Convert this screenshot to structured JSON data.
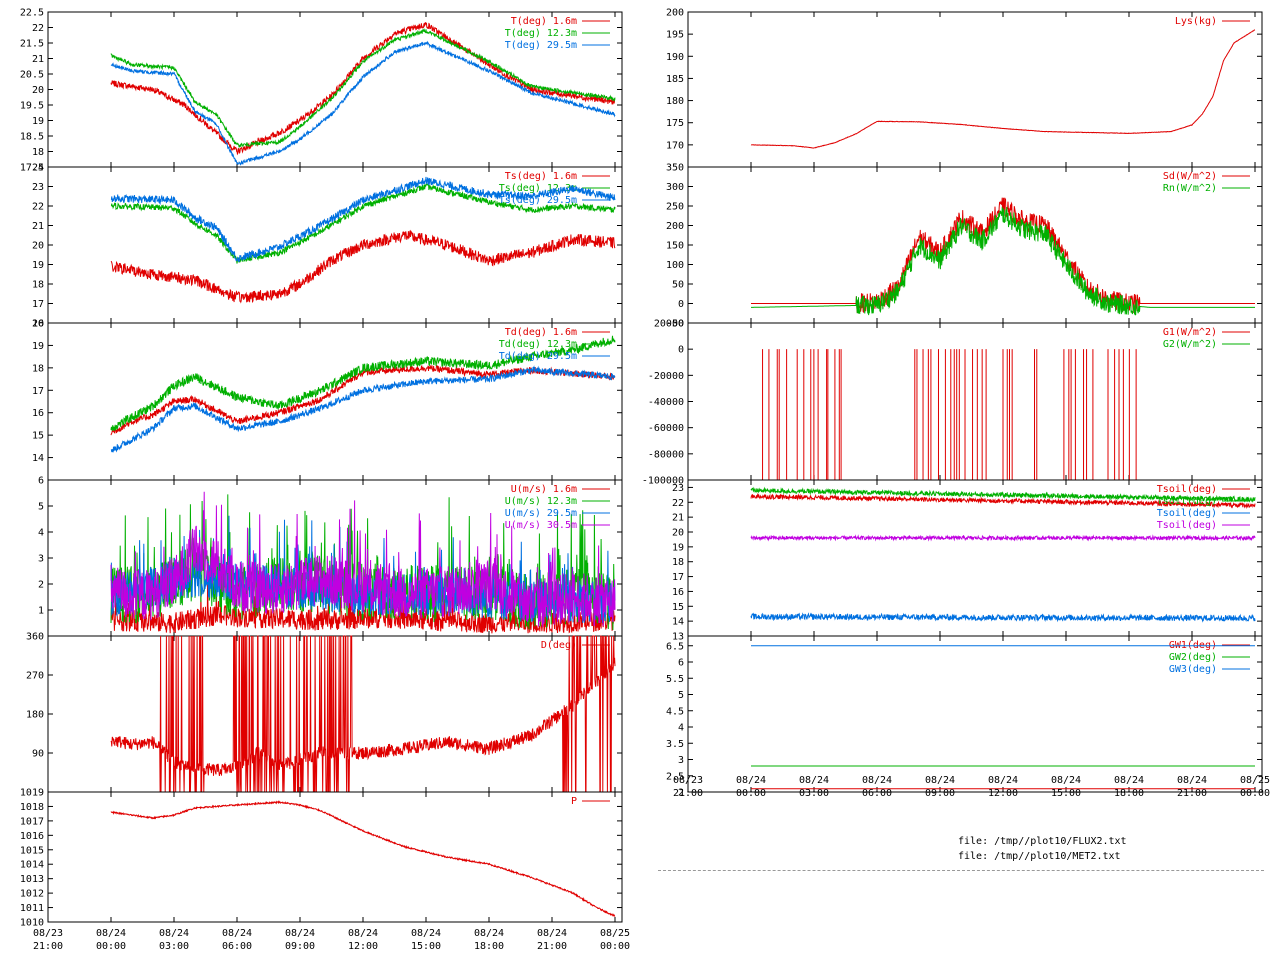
{
  "colors": {
    "red": "#e00000",
    "green": "#00b000",
    "blue": "#0070e0",
    "purple": "#c000e0",
    "axis": "#000000"
  },
  "left_time_ticks": [
    {
      "date": "08/23",
      "time": "21:00"
    },
    {
      "date": "08/24",
      "time": "00:00"
    },
    {
      "date": "08/24",
      "time": "03:00"
    },
    {
      "date": "08/24",
      "time": "06:00"
    },
    {
      "date": "08/24",
      "time": "09:00"
    },
    {
      "date": "08/24",
      "time": "12:00"
    },
    {
      "date": "08/24",
      "time": "15:00"
    },
    {
      "date": "08/24",
      "time": "18:00"
    },
    {
      "date": "08/24",
      "time": "21:00"
    },
    {
      "date": "08/25",
      "time": "00:00"
    }
  ],
  "right_time_ticks": [
    {
      "date": "08/23",
      "time": "21:00"
    },
    {
      "date": "08/24",
      "time": "00:00"
    },
    {
      "date": "08/24",
      "time": "03:00"
    },
    {
      "date": "08/24",
      "time": "06:00"
    },
    {
      "date": "08/24",
      "time": "09:00"
    },
    {
      "date": "08/24",
      "time": "12:00"
    },
    {
      "date": "08/24",
      "time": "15:00"
    },
    {
      "date": "08/24",
      "time": "18:00"
    },
    {
      "date": "08/24",
      "time": "21:00"
    },
    {
      "date": "08/25",
      "time": "00:00"
    }
  ],
  "files": [
    "file: /tmp//plot10/FLUX2.txt",
    "file: /tmp//plot10/MET2.txt"
  ],
  "chart_data": [
    {
      "id": "T",
      "type": "line",
      "ylim": [
        17.5,
        22.5
      ],
      "yticks": [
        "17.5",
        "18",
        "18.5",
        "19",
        "19.5",
        "20",
        "20.5",
        "21",
        "21.5",
        "22",
        "22.5"
      ],
      "series": [
        {
          "name": "T(deg)  1.6m",
          "color": "red",
          "noise": 0.1,
          "x": [
            0,
            2,
            3.5,
            6,
            8,
            9,
            10.5,
            12,
            13.5,
            15,
            18,
            20,
            24
          ],
          "values": [
            20.2,
            20.0,
            19.5,
            18.0,
            18.6,
            19.0,
            19.8,
            21.0,
            21.8,
            22.1,
            20.8,
            20.0,
            19.6
          ]
        },
        {
          "name": "T(deg) 12.3m",
          "color": "green",
          "noise": 0.06,
          "x": [
            0,
            1,
            3,
            4,
            5,
            6,
            8,
            9,
            10.5,
            12,
            13.5,
            15,
            18,
            20,
            24
          ],
          "values": [
            21.1,
            20.8,
            20.7,
            19.6,
            19.2,
            18.2,
            18.3,
            18.8,
            19.7,
            20.9,
            21.6,
            21.9,
            20.9,
            20.1,
            19.7
          ]
        },
        {
          "name": "T(deg) 29.5m",
          "color": "blue",
          "noise": 0.06,
          "x": [
            0,
            1,
            3,
            4,
            5,
            6,
            8,
            9,
            10.5,
            12,
            13.5,
            15,
            18,
            20,
            24
          ],
          "values": [
            20.8,
            20.6,
            20.5,
            19.3,
            18.9,
            17.6,
            18.0,
            18.4,
            19.2,
            20.4,
            21.2,
            21.5,
            20.6,
            19.9,
            19.2
          ]
        }
      ]
    },
    {
      "id": "Ts",
      "type": "line",
      "ylim": [
        16,
        24
      ],
      "yticks": [
        "16",
        "17",
        "18",
        "19",
        "20",
        "21",
        "22",
        "23",
        "24"
      ],
      "series": [
        {
          "name": "Ts(deg)  1.6m",
          "color": "red",
          "noise": 0.3,
          "x": [
            0,
            2,
            4,
            6,
            8,
            9,
            10.5,
            12,
            14,
            16,
            18,
            20,
            22,
            24
          ],
          "values": [
            18.9,
            18.5,
            18.2,
            17.3,
            17.5,
            18.0,
            19.2,
            20.0,
            20.5,
            20.0,
            19.2,
            19.6,
            20.3,
            20.1
          ]
        },
        {
          "name": "Ts(deg) 12.3m",
          "color": "green",
          "noise": 0.15,
          "x": [
            0,
            3,
            4,
            5,
            6,
            8,
            10,
            12,
            15,
            18,
            20,
            22,
            24
          ],
          "values": [
            22.0,
            21.9,
            21.1,
            20.5,
            19.2,
            19.6,
            20.7,
            22.0,
            23.0,
            22.2,
            21.8,
            22.0,
            21.8
          ]
        },
        {
          "name": "Ts(deg) 29.5m",
          "color": "blue",
          "noise": 0.2,
          "x": [
            0,
            3,
            4,
            5,
            6,
            8,
            10,
            12,
            15,
            18,
            20,
            22,
            24
          ],
          "values": [
            22.4,
            22.3,
            21.4,
            20.9,
            19.3,
            19.9,
            21.0,
            22.3,
            23.3,
            22.6,
            22.5,
            22.9,
            22.4
          ]
        }
      ]
    },
    {
      "id": "Td",
      "type": "line",
      "ylim": [
        13,
        20
      ],
      "yticks": [
        "14",
        "15",
        "16",
        "17",
        "18",
        "19",
        "20"
      ],
      "series": [
        {
          "name": "Td(deg)  1.6m",
          "color": "red",
          "noise": 0.15,
          "x": [
            0,
            1,
            2,
            3,
            4,
            6,
            8,
            10,
            12,
            15,
            18,
            20,
            24
          ],
          "values": [
            15.1,
            15.6,
            15.9,
            16.5,
            16.6,
            15.6,
            16.0,
            16.6,
            17.8,
            18.0,
            17.7,
            17.9,
            17.6
          ]
        },
        {
          "name": "Td(deg) 12.3m",
          "color": "green",
          "noise": 0.2,
          "x": [
            0,
            1,
            2,
            3,
            4,
            6,
            8,
            10,
            12,
            15,
            18,
            20,
            22,
            24
          ],
          "values": [
            15.3,
            15.8,
            16.3,
            17.2,
            17.6,
            16.7,
            16.3,
            17.0,
            18.0,
            18.3,
            18.1,
            18.5,
            18.8,
            19.3
          ]
        },
        {
          "name": "Td(deg) 29.5m",
          "color": "blue",
          "noise": 0.15,
          "x": [
            0,
            1,
            2,
            3,
            4,
            6,
            8,
            10,
            12,
            15,
            18,
            20,
            24
          ],
          "values": [
            14.3,
            14.8,
            15.3,
            16.2,
            16.3,
            15.3,
            15.6,
            16.2,
            17.0,
            17.4,
            17.5,
            17.9,
            17.6
          ]
        }
      ]
    },
    {
      "id": "U",
      "type": "line",
      "ylim": [
        0,
        6
      ],
      "yticks": [
        "1",
        "2",
        "3",
        "4",
        "5",
        "6"
      ],
      "series": [
        {
          "name": "U(m/s)  1.6m",
          "color": "red",
          "noise": 0.4,
          "x": [
            0,
            3,
            5,
            7,
            10,
            13,
            15,
            18,
            21,
            24
          ],
          "values": [
            0.6,
            0.5,
            0.8,
            0.7,
            0.6,
            0.7,
            0.6,
            0.5,
            0.5,
            0.6
          ]
        },
        {
          "name": "U(m/s) 12.3m",
          "color": "green",
          "noise": 1.1,
          "x": [
            0,
            2,
            4,
            6,
            8,
            10,
            12,
            14,
            16,
            18,
            20,
            22,
            24
          ],
          "values": [
            1.6,
            1.6,
            2.5,
            1.7,
            2.0,
            2.0,
            1.7,
            1.7,
            1.6,
            1.8,
            1.2,
            1.6,
            1.3
          ]
        },
        {
          "name": "U(m/s) 29.5m",
          "color": "blue",
          "noise": 0.8,
          "x": [
            0,
            4,
            8,
            12,
            16,
            20,
            24
          ],
          "values": [
            1.5,
            2.3,
            1.9,
            1.6,
            1.6,
            1.3,
            1.3
          ]
        },
        {
          "name": "U(m/s) 30.5m",
          "color": "purple",
          "noise": 1.0,
          "x": [
            0,
            1,
            2,
            3,
            4,
            5,
            6,
            8,
            10,
            12,
            14,
            16,
            18,
            20,
            22,
            24
          ],
          "values": [
            1.8,
            1.5,
            1.6,
            2.0,
            3.3,
            2.8,
            1.9,
            1.8,
            2.2,
            1.9,
            1.6,
            1.7,
            2.0,
            1.2,
            1.5,
            1.3
          ]
        }
      ]
    },
    {
      "id": "D",
      "type": "line",
      "ylim": [
        0,
        360
      ],
      "yticks": [
        "90",
        "180",
        "270",
        "360"
      ],
      "series": [
        {
          "name": "D(deg)",
          "color": "red",
          "noise": 15,
          "x": [
            0,
            1,
            2,
            3,
            4,
            5,
            6,
            7,
            8,
            10,
            12,
            14,
            16,
            18,
            20,
            22,
            24
          ],
          "values": [
            120,
            110,
            115,
            70,
            55,
            50,
            55,
            90,
            60,
            90,
            90,
            100,
            115,
            100,
            130,
            200,
            300
          ]
        }
      ]
    },
    {
      "id": "P",
      "type": "line",
      "ylim": [
        1010,
        1019
      ],
      "yticks": [
        "1010",
        "1011",
        "1012",
        "1013",
        "1014",
        "1015",
        "1016",
        "1017",
        "1018",
        "1019"
      ],
      "series": [
        {
          "name": "P",
          "color": "red",
          "noise": 0.05,
          "x": [
            0,
            1,
            2,
            3,
            4,
            6,
            8,
            9,
            10,
            12,
            14,
            16,
            18,
            20,
            22,
            23,
            24
          ],
          "values": [
            1017.6,
            1017.4,
            1017.2,
            1017.4,
            1017.9,
            1018.1,
            1018.3,
            1018.1,
            1017.7,
            1016.3,
            1015.2,
            1014.5,
            1014.0,
            1013.1,
            1012.0,
            1011.1,
            1010.4
          ]
        }
      ]
    },
    {
      "id": "Lys",
      "type": "line",
      "ylim": [
        165,
        200
      ],
      "yticks": [
        "170",
        "175",
        "180",
        "185",
        "190",
        "195",
        "200"
      ],
      "series": [
        {
          "name": "Lys(kg)",
          "color": "red",
          "noise": 0.05,
          "x": [
            0,
            2,
            3,
            4,
            5,
            6,
            8,
            10,
            12,
            14,
            16,
            18,
            20,
            21,
            21.5,
            22,
            22.5,
            23,
            24
          ],
          "values": [
            170,
            169.8,
            169.3,
            170.5,
            172.5,
            175.3,
            175.2,
            174.6,
            173.7,
            173.0,
            172.8,
            172.6,
            173.0,
            174.5,
            177,
            181,
            189,
            193,
            196
          ]
        }
      ]
    },
    {
      "id": "Sd",
      "type": "line",
      "ylim": [
        -50,
        350
      ],
      "yticks": [
        "-50",
        "0",
        "50",
        "100",
        "150",
        "200",
        "250",
        "300",
        "350"
      ],
      "series": [
        {
          "name": "Sd(W/m^2)",
          "color": "red",
          "noise": 25,
          "x": [
            0,
            5,
            6,
            7,
            8,
            9,
            10,
            11,
            12,
            13,
            14,
            15,
            16,
            17,
            18,
            19,
            24
          ],
          "values": [
            0,
            0,
            5,
            40,
            170,
            130,
            220,
            180,
            250,
            210,
            200,
            120,
            40,
            10,
            0,
            0,
            0
          ]
        },
        {
          "name": "Rn(W/m^2)",
          "color": "green",
          "noise": 25,
          "x": [
            0,
            5,
            6,
            7,
            8,
            9,
            10,
            11,
            12,
            13,
            14,
            15,
            16,
            17,
            18,
            19,
            24
          ],
          "values": [
            -10,
            -5,
            -5,
            30,
            150,
            110,
            200,
            160,
            230,
            190,
            180,
            100,
            30,
            0,
            -5,
            -10,
            -10
          ]
        }
      ]
    },
    {
      "id": "G",
      "type": "line",
      "ylim": [
        -100000,
        20000
      ],
      "yticks": [
        "-100000",
        "-80000",
        "-60000",
        "-40000",
        "-20000",
        "0",
        "20000"
      ],
      "series": [
        {
          "name": "G1(W/m^2)",
          "color": "red",
          "noise": 0,
          "x": [
            0,
            24
          ],
          "values": [
            -100000,
            -100000
          ]
        },
        {
          "name": "G2(W/m^2)",
          "color": "green",
          "noise": 0,
          "x": [
            0,
            24
          ],
          "values": [
            -100000,
            -100000
          ]
        }
      ],
      "spikes_0": [
        [
          0.55,
          0.9
        ],
        [
          1.25,
          1.9
        ],
        [
          2.2,
          3.3
        ],
        [
          3.6,
          4.5
        ],
        [
          7.8,
          11.2
        ],
        [
          12.0,
          12.5
        ],
        [
          13.5,
          13.7
        ],
        [
          14.9,
          16.3
        ],
        [
          17.0,
          18.4
        ]
      ]
    },
    {
      "id": "Tsoil",
      "type": "line",
      "ylim": [
        13,
        23.5
      ],
      "yticks": [
        "13",
        "14",
        "15",
        "16",
        "17",
        "18",
        "19",
        "20",
        "21",
        "22",
        "23"
      ],
      "series": [
        {
          "name": "Tsoil(deg)",
          "color": "red",
          "noise": 0.15,
          "x": [
            0,
            24
          ],
          "values": [
            22.4,
            21.8
          ]
        },
        {
          "name": "Tsoil(deg)",
          "color": "green",
          "noise": 0.15,
          "x": [
            0,
            24
          ],
          "values": [
            22.8,
            22.2
          ]
        },
        {
          "name": "Tsoil(deg)",
          "color": "blue",
          "noise": 0.2,
          "x": [
            0,
            24
          ],
          "values": [
            14.3,
            14.2
          ]
        },
        {
          "name": "Tsoil(deg)",
          "color": "purple",
          "noise": 0.12,
          "x": [
            0,
            24
          ],
          "values": [
            19.6,
            19.6
          ]
        }
      ]
    },
    {
      "id": "GW",
      "type": "line",
      "ylim": [
        2,
        6.8
      ],
      "yticks": [
        "2",
        "2.5",
        "3",
        "3.5",
        "4",
        "4.5",
        "5",
        "5.5",
        "6",
        "6.5"
      ],
      "series": [
        {
          "name": "GW1(deg)",
          "color": "red",
          "noise": 0,
          "x": [
            0,
            24
          ],
          "values": [
            2.1,
            2.1
          ]
        },
        {
          "name": "GW2(deg)",
          "color": "green",
          "noise": 0,
          "x": [
            0,
            24
          ],
          "values": [
            2.8,
            2.8
          ]
        },
        {
          "name": "GW3(deg)",
          "color": "blue",
          "noise": 0,
          "x": [
            0,
            24
          ],
          "values": [
            6.5,
            6.5
          ]
        }
      ]
    }
  ]
}
